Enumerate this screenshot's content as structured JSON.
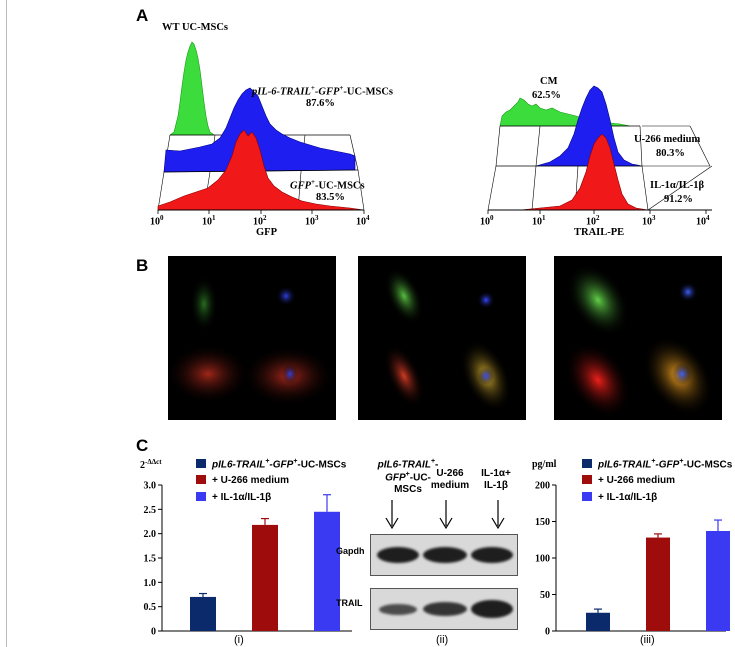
{
  "panels": {
    "A": "A",
    "B": "B",
    "C": "C"
  },
  "panelA": {
    "left": {
      "labels": {
        "wt": "WT UC-MSCs",
        "trail_italic": "pIL-6-TRAIL",
        "trail_sup1": "+",
        "trail_mid": "-GFP",
        "trail_sup2": "+",
        "trail_tail": "-UC-MSCs",
        "trail_pct": "87.6%",
        "gfp_italic": "GFP",
        "gfp_sup": "+",
        "gfp_tail": "-UC-MSCs",
        "gfp_pct": "83.5%"
      },
      "axis_label": "GFP",
      "ticks": [
        {
          "base": "10",
          "exp": "0"
        },
        {
          "base": "10",
          "exp": "1"
        },
        {
          "base": "10",
          "exp": "2"
        },
        {
          "base": "10",
          "exp": "3"
        },
        {
          "base": "10",
          "exp": "4"
        }
      ],
      "series_colors": {
        "back": "#3cdc3c",
        "mid": "#1e1ef0",
        "front": "#f01818"
      }
    },
    "right": {
      "labels": {
        "cm": "CM",
        "cm_pct": "62.5%",
        "u266": "U-266 medium",
        "u266_pct": "80.3%",
        "il1": "IL-1α/IL-1β",
        "il1_pct": "91.2%"
      },
      "axis_label": "TRAIL-PE",
      "ticks": [
        {
          "base": "10",
          "exp": "0"
        },
        {
          "base": "10",
          "exp": "1"
        },
        {
          "base": "10",
          "exp": "2"
        },
        {
          "base": "10",
          "exp": "3"
        },
        {
          "base": "10",
          "exp": "4"
        }
      ]
    }
  },
  "panelC": {
    "legend": [
      {
        "prefix": "",
        "italic": "pIL6-TRAIL",
        "sup1": "+",
        "mid": "-GFP",
        "sup2": "+",
        "tail": "-UC-MSCs",
        "color": "#0b2a6b"
      },
      {
        "prefix": "+ ",
        "italic": "",
        "sup1": "",
        "mid": "U-266 medium",
        "sup2": "",
        "tail": "",
        "color": "#9e0c0c"
      },
      {
        "prefix": "+ ",
        "italic": "",
        "sup1": "",
        "mid": "IL-1α/IL-1β",
        "sup2": "",
        "tail": "",
        "color": "#3a3af2"
      }
    ],
    "sub_labels": [
      "(i)",
      "(ii)",
      "(iii)"
    ],
    "blot": {
      "col1_line1_italic": "pIL6-TRAIL",
      "col1_line1_sup": "+",
      "col1_line1_tail": "-",
      "col1_line2_italic": "GFP",
      "col1_line2_sup": "+",
      "col1_line2_tail": "-UC-MSCs",
      "col2_line1": "U-266",
      "col2_line2": "medium",
      "col3_line1": "IL-1α+",
      "col3_line2": "IL-1β",
      "row1": "Gapdh",
      "row2": "TRAIL",
      "gapdh_intensity": [
        0.95,
        0.95,
        0.95
      ],
      "trail_intensity": [
        0.7,
        0.85,
        0.98
      ]
    }
  },
  "chart_data": [
    {
      "type": "bar",
      "ylabel": "2-ΔΔct",
      "ylabel_base": "2",
      "ylabel_exp": "-ΔΔct",
      "ylim": [
        0,
        3.0
      ],
      "yticks": [
        "0",
        "0.5",
        "1.0",
        "1.5",
        "2.0",
        "2.5",
        "3.0"
      ],
      "categories": [
        "pIL6-TRAIL+-GFP+-UC-MSCs",
        "+ U-266 medium",
        "+ IL-1α/IL-1β"
      ],
      "values": [
        0.7,
        2.18,
        2.45
      ],
      "errors": [
        0.07,
        0.13,
        0.35
      ],
      "colors": [
        "#0b2a6b",
        "#9e0c0c",
        "#3a3af2"
      ],
      "legend": "top"
    },
    {
      "type": "bar",
      "ylabel": "pg/ml",
      "ylim": [
        0,
        200
      ],
      "yticks": [
        "0",
        "50",
        "100",
        "150",
        "200"
      ],
      "categories": [
        "pIL6-TRAIL+-GFP+-UC-MSCs",
        "+ U-266 medium",
        "+ IL-1α/IL-1β"
      ],
      "values": [
        25,
        128,
        137
      ],
      "errors": [
        5,
        5,
        15
      ],
      "colors": [
        "#0b2a6b",
        "#9e0c0c",
        "#3a3af2"
      ],
      "legend": "top"
    }
  ]
}
